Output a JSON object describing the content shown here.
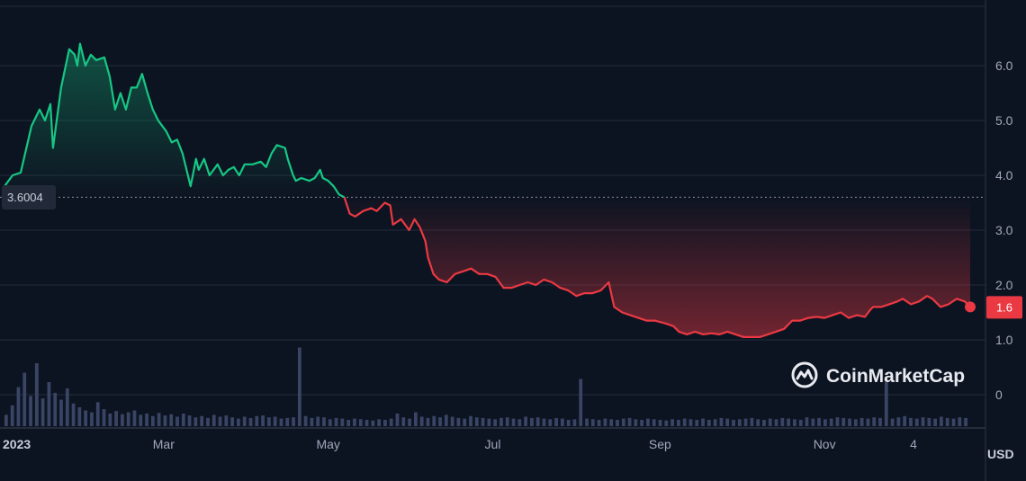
{
  "brand": {
    "name": "CoinMarketCap",
    "icon": "coinmarketcap-logo-icon"
  },
  "currency_label": "USD",
  "colors": {
    "background": "#0d1421",
    "up": "#16c784",
    "down": "#ea3943",
    "grid": "#222a3a",
    "volume": "#3a4566"
  },
  "chart_data": {
    "type": "line",
    "title": "",
    "xlabel": "",
    "ylabel": "",
    "ylim": [
      0,
      7
    ],
    "yticks": [
      0,
      1.0,
      2.0,
      3.0,
      4.0,
      5.0,
      6.0
    ],
    "ytick_labels": [
      "0",
      "1.0",
      "2.0",
      "3.0",
      "4.0",
      "5.0",
      "6.0"
    ],
    "xticks": [
      {
        "label": "2023",
        "day": 0,
        "bold": true
      },
      {
        "label": "Mar",
        "day": 59
      },
      {
        "label": "May",
        "day": 120
      },
      {
        "label": "Jul",
        "day": 181
      },
      {
        "label": "Sep",
        "day": 243
      },
      {
        "label": "Nov",
        "day": 304
      },
      {
        "label": "4",
        "day": 337
      }
    ],
    "reference_price": 3.6004,
    "reference_label": "3.6004",
    "last_price": 1.6,
    "last_label": "1.6",
    "grid": true,
    "series": [
      {
        "values": [
          [
            0,
            3.8
          ],
          [
            3,
            4.0
          ],
          [
            6,
            4.05
          ],
          [
            10,
            4.9
          ],
          [
            13,
            5.2
          ],
          [
            15,
            5.0
          ],
          [
            17,
            5.3
          ],
          [
            18,
            4.5
          ],
          [
            21,
            5.6
          ],
          [
            24,
            6.3
          ],
          [
            26,
            6.2
          ],
          [
            27,
            6.0
          ],
          [
            28,
            6.4
          ],
          [
            30,
            6.0
          ],
          [
            32,
            6.2
          ],
          [
            34,
            6.1
          ],
          [
            37,
            6.15
          ],
          [
            39,
            5.8
          ],
          [
            41,
            5.2
          ],
          [
            43,
            5.5
          ],
          [
            45,
            5.2
          ],
          [
            47,
            5.6
          ],
          [
            49,
            5.6
          ],
          [
            51,
            5.85
          ],
          [
            53,
            5.5
          ],
          [
            55,
            5.2
          ],
          [
            57,
            5.0
          ],
          [
            60,
            4.8
          ],
          [
            62,
            4.6
          ],
          [
            64,
            4.65
          ],
          [
            66,
            4.4
          ],
          [
            68,
            4.0
          ],
          [
            69,
            3.8
          ],
          [
            71,
            4.3
          ],
          [
            72,
            4.1
          ],
          [
            74,
            4.3
          ],
          [
            76,
            4.0
          ],
          [
            79,
            4.2
          ],
          [
            81,
            4.0
          ],
          [
            83,
            4.1
          ],
          [
            85,
            4.15
          ],
          [
            87,
            4.0
          ],
          [
            89,
            4.2
          ],
          [
            92,
            4.2
          ],
          [
            95,
            4.25
          ],
          [
            97,
            4.15
          ],
          [
            99,
            4.4
          ],
          [
            101,
            4.55
          ],
          [
            104,
            4.5
          ],
          [
            105,
            4.3
          ],
          [
            107,
            4.0
          ],
          [
            108,
            3.9
          ],
          [
            110,
            3.95
          ],
          [
            113,
            3.9
          ],
          [
            115,
            3.95
          ],
          [
            117,
            4.1
          ],
          [
            118,
            3.95
          ],
          [
            120,
            3.9
          ],
          [
            122,
            3.8
          ],
          [
            124,
            3.65
          ],
          [
            126,
            3.6
          ],
          [
            128,
            3.3
          ],
          [
            130,
            3.25
          ],
          [
            133,
            3.35
          ],
          [
            136,
            3.4
          ],
          [
            138,
            3.35
          ],
          [
            141,
            3.5
          ],
          [
            143,
            3.45
          ],
          [
            144,
            3.1
          ],
          [
            147,
            3.2
          ],
          [
            150,
            3.0
          ],
          [
            152,
            3.2
          ],
          [
            154,
            3.05
          ],
          [
            156,
            2.8
          ],
          [
            157,
            2.5
          ],
          [
            159,
            2.2
          ],
          [
            161,
            2.1
          ],
          [
            164,
            2.05
          ],
          [
            167,
            2.2
          ],
          [
            170,
            2.25
          ],
          [
            173,
            2.3
          ],
          [
            176,
            2.2
          ],
          [
            179,
            2.2
          ],
          [
            182,
            2.15
          ],
          [
            185,
            1.95
          ],
          [
            188,
            1.95
          ],
          [
            191,
            2.0
          ],
          [
            194,
            2.05
          ],
          [
            197,
            2.0
          ],
          [
            200,
            2.1
          ],
          [
            203,
            2.05
          ],
          [
            206,
            1.95
          ],
          [
            209,
            1.9
          ],
          [
            212,
            1.8
          ],
          [
            215,
            1.85
          ],
          [
            218,
            1.85
          ],
          [
            221,
            1.9
          ],
          [
            224,
            2.05
          ],
          [
            226,
            1.6
          ],
          [
            229,
            1.5
          ],
          [
            232,
            1.45
          ],
          [
            235,
            1.4
          ],
          [
            238,
            1.35
          ],
          [
            241,
            1.35
          ],
          [
            245,
            1.3
          ],
          [
            248,
            1.25
          ],
          [
            250,
            1.15
          ],
          [
            253,
            1.1
          ],
          [
            256,
            1.15
          ],
          [
            259,
            1.1
          ],
          [
            262,
            1.12
          ],
          [
            265,
            1.1
          ],
          [
            268,
            1.15
          ],
          [
            271,
            1.1
          ],
          [
            274,
            1.05
          ],
          [
            277,
            1.05
          ],
          [
            280,
            1.05
          ],
          [
            283,
            1.1
          ],
          [
            286,
            1.15
          ],
          [
            289,
            1.2
          ],
          [
            292,
            1.35
          ],
          [
            295,
            1.35
          ],
          [
            298,
            1.4
          ],
          [
            301,
            1.42
          ],
          [
            304,
            1.4
          ],
          [
            307,
            1.45
          ],
          [
            310,
            1.5
          ],
          [
            313,
            1.4
          ],
          [
            316,
            1.45
          ],
          [
            319,
            1.42
          ],
          [
            321,
            1.55
          ],
          [
            322,
            1.6
          ],
          [
            325,
            1.6
          ],
          [
            328,
            1.65
          ],
          [
            331,
            1.7
          ],
          [
            333,
            1.75
          ],
          [
            336,
            1.65
          ],
          [
            339,
            1.7
          ],
          [
            342,
            1.8
          ],
          [
            344,
            1.75
          ],
          [
            347,
            1.6
          ],
          [
            350,
            1.65
          ],
          [
            353,
            1.75
          ],
          [
            356,
            1.7
          ],
          [
            358,
            1.6
          ]
        ]
      }
    ],
    "volume_series": [
      0.18,
      0.33,
      0.62,
      0.85,
      0.48,
      1.0,
      0.44,
      0.7,
      0.53,
      0.42,
      0.6,
      0.36,
      0.3,
      0.25,
      0.22,
      0.38,
      0.27,
      0.2,
      0.24,
      0.19,
      0.22,
      0.25,
      0.18,
      0.2,
      0.16,
      0.21,
      0.17,
      0.19,
      0.15,
      0.2,
      0.17,
      0.14,
      0.16,
      0.13,
      0.18,
      0.15,
      0.17,
      0.14,
      0.12,
      0.15,
      0.13,
      0.16,
      0.17,
      0.14,
      0.15,
      0.12,
      0.13,
      0.14,
      1.25,
      0.16,
      0.13,
      0.15,
      0.14,
      0.11,
      0.13,
      0.12,
      0.1,
      0.12,
      0.11,
      0.1,
      0.09,
      0.11,
      0.1,
      0.12,
      0.2,
      0.14,
      0.12,
      0.22,
      0.15,
      0.13,
      0.16,
      0.14,
      0.18,
      0.15,
      0.13,
      0.12,
      0.16,
      0.14,
      0.13,
      0.12,
      0.11,
      0.13,
      0.14,
      0.12,
      0.11,
      0.15,
      0.13,
      0.14,
      0.12,
      0.11,
      0.13,
      0.12,
      0.1,
      0.11,
      0.75,
      0.12,
      0.11,
      0.1,
      0.12,
      0.11,
      0.1,
      0.12,
      0.13,
      0.11,
      0.1,
      0.12,
      0.11,
      0.1,
      0.09,
      0.11,
      0.1,
      0.12,
      0.11,
      0.1,
      0.12,
      0.1,
      0.11,
      0.13,
      0.12,
      0.1,
      0.11,
      0.12,
      0.13,
      0.11,
      0.1,
      0.12,
      0.11,
      0.13,
      0.12,
      0.11,
      0.1,
      0.14,
      0.12,
      0.13,
      0.11,
      0.12,
      0.14,
      0.13,
      0.12,
      0.11,
      0.13,
      0.12,
      0.14,
      0.13,
      0.7,
      0.12,
      0.14,
      0.16,
      0.13,
      0.12,
      0.14,
      0.13,
      0.12,
      0.15,
      0.13,
      0.12,
      0.14,
      0.13
    ]
  }
}
